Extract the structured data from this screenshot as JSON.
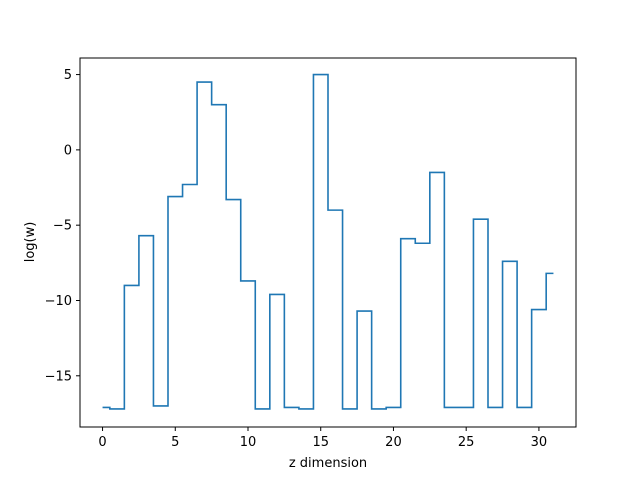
{
  "chart_data": {
    "type": "line",
    "drawstyle": "steps-mid",
    "title": "",
    "xlabel": "z dimension",
    "ylabel": "log(w)",
    "xlim": [
      -1.55,
      32.55
    ],
    "ylim": [
      -18.4,
      6.1
    ],
    "xticks": [
      0,
      5,
      10,
      15,
      20,
      25,
      30
    ],
    "yticks": [
      5,
      0,
      -5,
      -10,
      -15
    ],
    "ytick_labels": [
      "5",
      "0",
      "−5",
      "−10",
      "−15"
    ],
    "grid": false,
    "line_color": "#1f77b4",
    "series": [
      {
        "x": [
          0,
          1,
          2,
          3,
          4,
          5,
          6,
          7,
          8,
          9,
          10,
          11,
          12,
          13,
          14,
          15,
          16,
          17,
          18,
          19,
          20,
          21,
          22,
          23,
          24,
          25,
          26,
          27,
          28,
          29,
          30,
          31
        ],
        "y": [
          -17.1,
          -17.2,
          -9.0,
          -5.7,
          -17.0,
          -3.1,
          -2.3,
          4.5,
          3.0,
          -3.3,
          -8.7,
          -17.2,
          -9.6,
          -17.1,
          -17.2,
          5.0,
          -4.0,
          -17.2,
          -10.7,
          -17.2,
          -17.1,
          -5.9,
          -6.2,
          -1.5,
          -17.1,
          -17.1,
          -4.6,
          -17.1,
          -7.4,
          -17.1,
          -10.6,
          -8.2
        ]
      }
    ]
  }
}
